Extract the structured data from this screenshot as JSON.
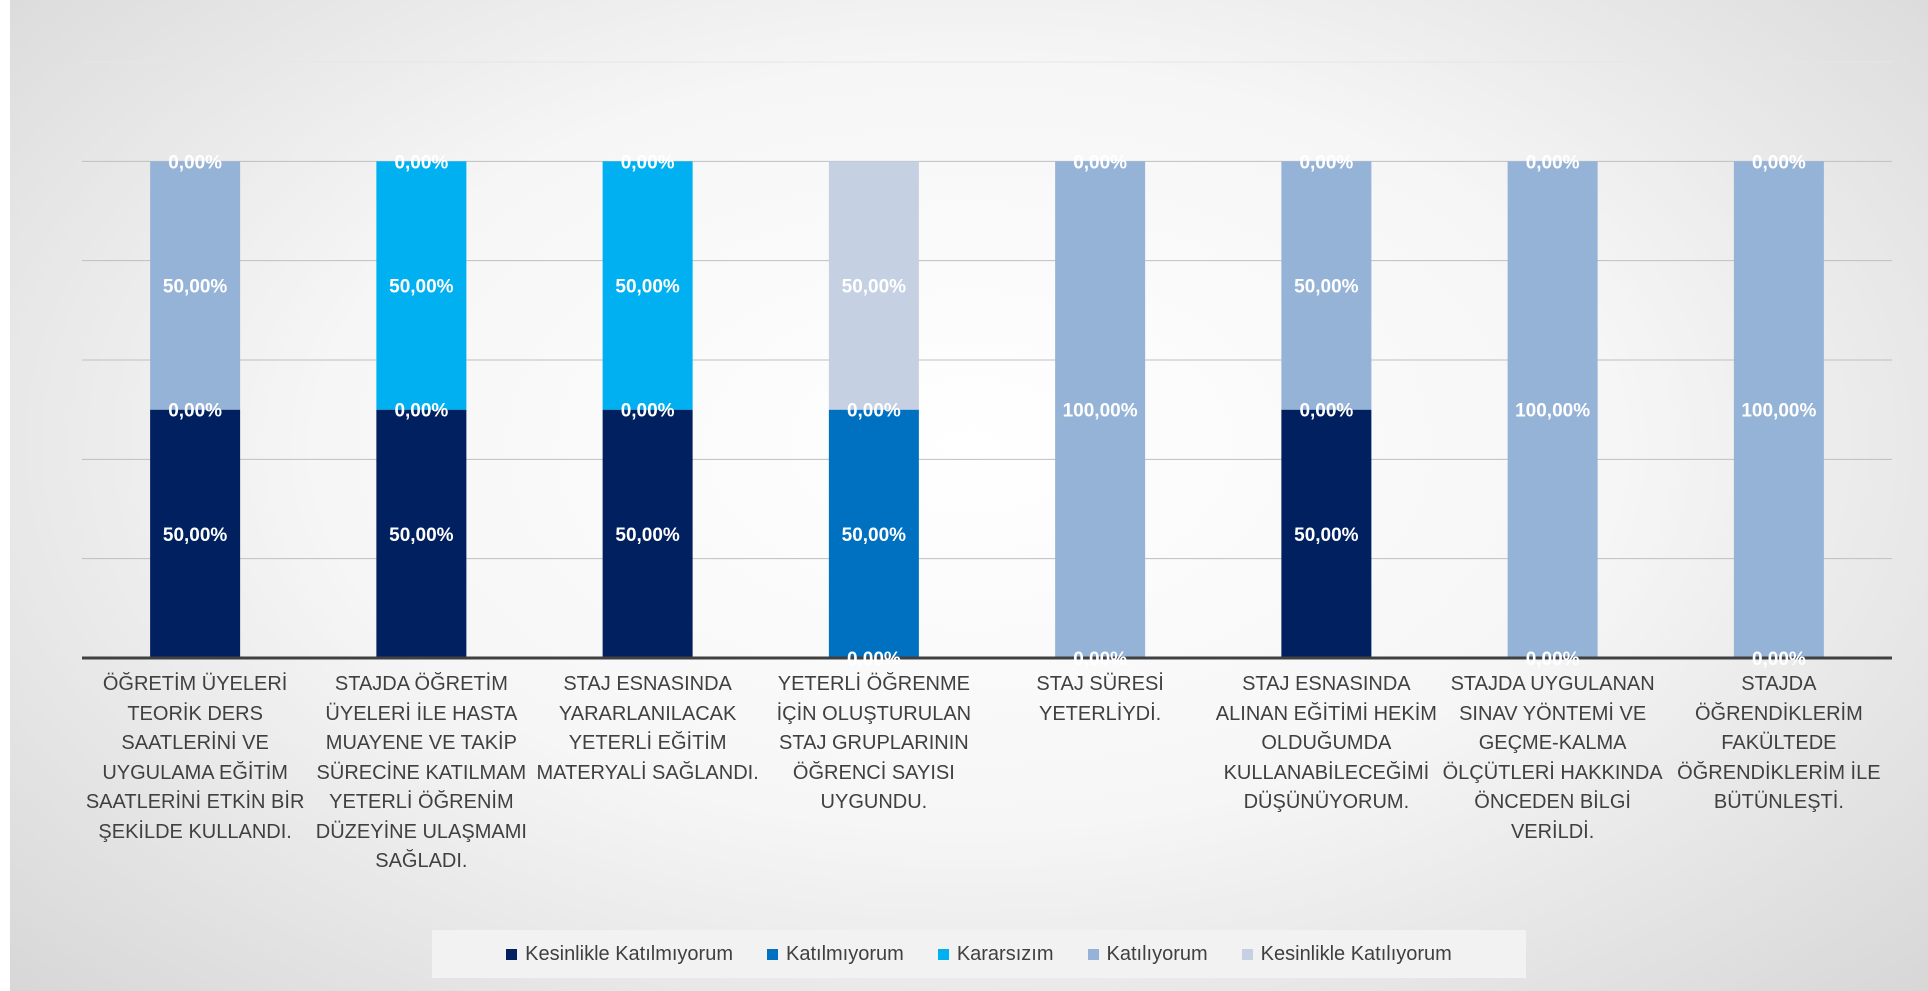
{
  "chart_data": {
    "type": "bar",
    "stacked": true,
    "ylim": [
      0,
      1.2
    ],
    "grid": true,
    "legend_position": "bottom",
    "categories": [
      "ÖĞRETİM ÜYELERİ TEORİK DERS SAATLERİNİ VE UYGULAMA EĞİTİM SAATLERİNİ ETKİN BİR ŞEKİLDE KULLANDI.",
      "STAJDA ÖĞRETİM ÜYELERİ İLE HASTA MUAYENE VE TAKİP SÜRECİNE KATILMAM YETERLİ ÖĞRENİM DÜZEYİNE ULAŞMAMI SAĞLADI.",
      "STAJ ESNASINDA YARARLANILACAK YETERLİ EĞİTİM MATERYALİ SAĞLANDI.",
      "YETERLİ ÖĞRENME İÇİN OLUŞTURULAN STAJ GRUPLARININ ÖĞRENCİ SAYISI UYGUNDU.",
      "STAJ SÜRESİ YETERLİYDİ.",
      "STAJ ESNASINDA ALINAN EĞİTİMİ HEKİM OLDUĞUMDA KULLANABİLECEĞİMİ DÜŞÜNÜYORUM.",
      "STAJDA UYGULANAN SINAV YÖNTEMİ VE GEÇME-KALMA ÖLÇÜTLERİ HAKKINDA ÖNCEDEN BİLGİ VERİLDİ.",
      "STAJDA ÖĞRENDİKLERİM FAKÜLTEDE ÖĞRENDİKLERİM İLE BÜTÜNLEŞTİ."
    ],
    "series": [
      {
        "name": "Kesinlikle Katılmıyorum",
        "color": "#002060",
        "values": [
          0.5,
          0.5,
          0.5,
          0,
          0,
          0.5,
          0,
          0
        ]
      },
      {
        "name": "Katılmıyorum",
        "color": "#0070c0",
        "values": [
          0,
          0,
          0,
          0.5,
          0,
          0,
          0,
          0
        ]
      },
      {
        "name": "Kararsızım",
        "color": "#00b0f0",
        "values": [
          0,
          0.5,
          0.5,
          0,
          0,
          0,
          0,
          0
        ]
      },
      {
        "name": "Katılıyorum",
        "color": "#95b3d7",
        "values": [
          0.5,
          0,
          0,
          0,
          1,
          0.5,
          1,
          1
        ]
      },
      {
        "name": "Kesinlikle Katılıyorum",
        "color": "#c5d1e3",
        "values": [
          0,
          0,
          0,
          0.5,
          0,
          0,
          0,
          0
        ]
      }
    ],
    "data_labels": [
      [
        "50,00%",
        "0,00%",
        "50,00%",
        "0,00%"
      ],
      [
        "50,00%",
        "0,00%",
        "50,00%",
        "0,00%"
      ],
      [
        "50,00%",
        "0,00%",
        "50,00%",
        "0,00%"
      ],
      [
        "0,00%",
        "50,00%",
        "0,00%",
        "50,00%"
      ],
      [
        "0,00%",
        "100,00%",
        "0,00%"
      ],
      [
        "50,00%",
        "0,00%",
        "50,00%",
        "0,00%"
      ],
      [
        "0,00%",
        "100,00%",
        "0,00%"
      ],
      [
        "0,00%",
        "100,00%",
        "0,00%"
      ]
    ],
    "data_label_values": [
      [
        0.25,
        0.5,
        0.75,
        1.0
      ],
      [
        0.25,
        0.5,
        0.75,
        1.0
      ],
      [
        0.25,
        0.5,
        0.75,
        1.0
      ],
      [
        0.0,
        0.25,
        0.5,
        0.75
      ],
      [
        0.0,
        0.5,
        1.0
      ],
      [
        0.25,
        0.5,
        0.75,
        1.0
      ],
      [
        0.0,
        0.5,
        1.0
      ],
      [
        0.0,
        0.5,
        1.0
      ]
    ]
  }
}
